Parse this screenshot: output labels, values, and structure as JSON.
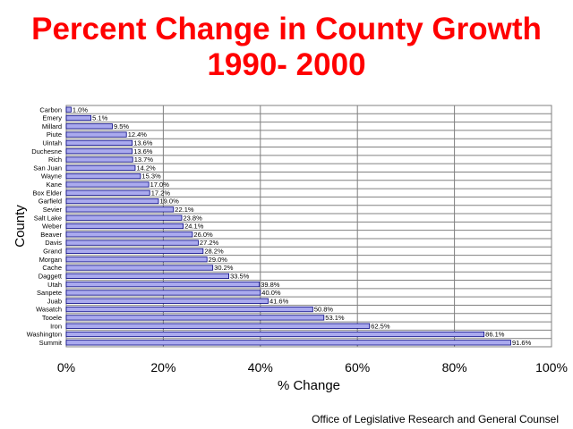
{
  "page": {
    "title_line1": "Percent Change in County Growth",
    "title_line2": "1990- 2000",
    "footer": "Office of Legislative Research and General Counsel"
  },
  "chart_data": {
    "type": "bar",
    "orientation": "horizontal",
    "xlabel": "% Change",
    "ylabel": "County",
    "xlim": [
      0,
      100
    ],
    "x_ticks": [
      "0%",
      "20%",
      "40%",
      "60%",
      "80%",
      "100%"
    ],
    "grid": true,
    "bar_color": "#aaaaee",
    "categories": [
      "Carbon",
      "Emery",
      "Millard",
      "Piute",
      "Uintah",
      "Duchesne",
      "Rich",
      "San Juan",
      "Wayne",
      "Kane",
      "Box Elder",
      "Garfield",
      "Sevier",
      "Salt Lake",
      "Weber",
      "Beaver",
      "Davis",
      "Grand",
      "Morgan",
      "Cache",
      "Daggett",
      "Utah",
      "Sanpete",
      "Juab",
      "Wasatch",
      "Tooele",
      "Iron",
      "Washington",
      "Summit"
    ],
    "values": [
      1.0,
      5.1,
      9.5,
      12.4,
      13.6,
      13.6,
      13.7,
      14.2,
      15.3,
      17.0,
      17.2,
      19.0,
      22.1,
      23.8,
      24.1,
      26.0,
      27.2,
      28.2,
      29.0,
      30.2,
      33.5,
      39.8,
      40.0,
      41.6,
      50.8,
      53.1,
      62.5,
      86.1,
      91.6
    ],
    "labels": [
      "1.0%",
      "5.1%",
      "9.5%",
      "12.4%",
      "13.6%",
      "13.6%",
      "13.7%",
      "14.2%",
      "15.3%",
      "17.0%",
      "17.2%",
      "19.0%",
      "22.1%",
      "23.8%",
      "24.1%",
      "26.0%",
      "27.2%",
      "28.2%",
      "29.0%",
      "30.2%",
      "33.5%",
      "39.8%",
      "40.0%",
      "41.6%",
      "50.8%",
      "53.1%",
      "62.5%",
      "86.1%",
      "91.6%"
    ]
  }
}
